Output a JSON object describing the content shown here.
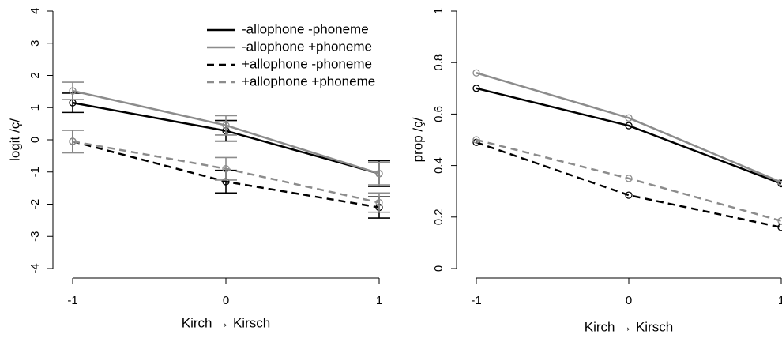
{
  "chart_data": [
    {
      "type": "line",
      "x_label": "Kirch → Kirsch",
      "y_label": "logit /ç/",
      "x": [
        -1,
        0,
        1
      ],
      "xlim": [
        -1,
        1
      ],
      "xticks": [
        -1,
        0,
        1
      ],
      "ylim": [
        -4,
        4
      ],
      "yticks": [
        -4,
        -3,
        -2,
        -1,
        0,
        1,
        2,
        3,
        4
      ],
      "legend": "top-right",
      "series": [
        {
          "name": "-allophone -phoneme",
          "color": "#000000",
          "dash": false,
          "values": [
            1.15,
            0.28,
            -1.05
          ],
          "errors": [
            0.3,
            0.32,
            0.4
          ]
        },
        {
          "name": "-allophone +phoneme",
          "color": "#8c8c8c",
          "dash": false,
          "values": [
            1.52,
            0.45,
            -1.05
          ],
          "errors": [
            0.27,
            0.3,
            0.35
          ]
        },
        {
          "name": "+allophone -phoneme",
          "color": "#000000",
          "dash": true,
          "values": [
            -0.05,
            -1.3,
            -2.1
          ],
          "errors": [
            0.35,
            0.35,
            0.33
          ]
        },
        {
          "name": "+allophone +phoneme",
          "color": "#8c8c8c",
          "dash": true,
          "values": [
            -0.05,
            -0.9,
            -1.95
          ],
          "errors": [
            0.35,
            0.35,
            0.3
          ]
        }
      ]
    },
    {
      "type": "line",
      "x_label": "Kirch → Kirsch",
      "y_label": "prop /ç/",
      "x": [
        -1,
        0,
        1
      ],
      "xlim": [
        -1,
        1
      ],
      "xticks": [
        -1,
        0,
        1
      ],
      "ylim": [
        0,
        1
      ],
      "yticks": [
        0,
        0.2,
        0.4,
        0.6,
        0.8,
        1
      ],
      "series": [
        {
          "color": "#000000",
          "dash": false,
          "values": [
            0.7,
            0.555,
            0.33
          ]
        },
        {
          "color": "#8c8c8c",
          "dash": false,
          "values": [
            0.76,
            0.585,
            0.335
          ]
        },
        {
          "color": "#000000",
          "dash": true,
          "values": [
            0.49,
            0.285,
            0.16
          ]
        },
        {
          "color": "#8c8c8c",
          "dash": true,
          "values": [
            0.5,
            0.35,
            0.185
          ]
        }
      ]
    }
  ]
}
